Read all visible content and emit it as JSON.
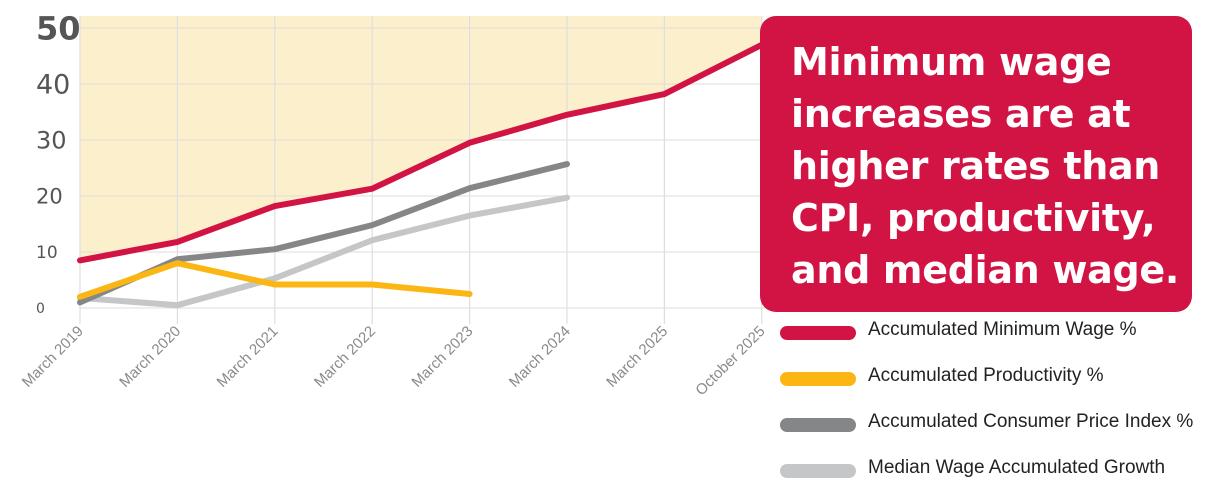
{
  "chart_data": {
    "type": "line",
    "categories": [
      "March 2019",
      "March 2020",
      "March 2021",
      "March 2022",
      "March 2023",
      "March 2024",
      "March 2025",
      "October 2025"
    ],
    "ylim": [
      0,
      50
    ],
    "y_ticks": [
      "0",
      "10",
      "20",
      "30",
      "40",
      "50"
    ],
    "grid": true,
    "shaded_area_under": "Accumulated Minimum Wage %",
    "series": [
      {
        "name": "Accumulated Minimum Wage %",
        "color": "#d21444",
        "values": [
          8.5,
          11.8,
          18.2,
          21.3,
          29.5,
          34.5,
          38.2,
          47
        ]
      },
      {
        "name": "Accumulated Productivity %",
        "color": "#fbb614",
        "values": [
          2.0,
          8.0,
          4.2,
          4.2,
          2.5,
          null,
          null,
          null
        ]
      },
      {
        "name": "Accumulated Consumer Price Index %",
        "color": "#858687",
        "values": [
          1.0,
          8.7,
          10.5,
          14.8,
          21.4,
          25.7,
          null,
          null
        ]
      },
      {
        "name": "Median Wage Accumulated Growth",
        "color": "#c5c6c7",
        "values": [
          1.8,
          0.5,
          5.3,
          12.1,
          16.5,
          19.7,
          null,
          null
        ]
      }
    ],
    "legend_position": "bottom-right",
    "annotation": "Minimum wage increases are at higher rates than CPI, productivity, and median wage."
  },
  "colors": {
    "shade": "#fcefcb",
    "grid": "#dedede",
    "highlight_tick": "#d21444",
    "callout_bg": "#d21444"
  },
  "legend": [
    {
      "label": "Accumulated Minimum Wage %",
      "color": "#d21444"
    },
    {
      "label": "Accumulated Productivity %",
      "color": "#fbb614"
    },
    {
      "label": "Accumulated Consumer Price Index %",
      "color": "#858687"
    },
    {
      "label": "Median Wage Accumulated Growth",
      "color": "#c5c6c7"
    }
  ],
  "callout": {
    "lines": [
      "Minimum wage",
      "increases are at",
      "higher rates than",
      "CPI, productivity,",
      "and median wage."
    ]
  }
}
